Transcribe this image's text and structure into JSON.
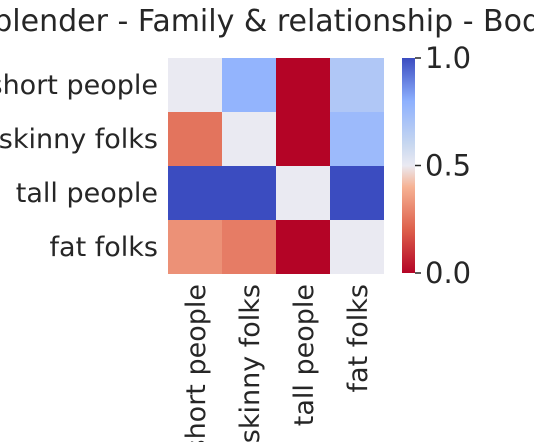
{
  "chart_data": {
    "type": "heatmap",
    "title": "blender - Family & relationship - Body",
    "row_labels": [
      "short people",
      "skinny folks",
      "tall people",
      "fat folks"
    ],
    "col_labels": [
      "short people",
      "skinny folks",
      "tall people",
      "fat folks"
    ],
    "values": [
      [
        0.5,
        0.78,
        0.0,
        0.68
      ],
      [
        0.25,
        0.5,
        0.0,
        0.75
      ],
      [
        1.0,
        1.0,
        0.5,
        1.0
      ],
      [
        0.32,
        0.27,
        0.0,
        0.5
      ]
    ],
    "colormap": "coolwarm_r",
    "vmin": 0.0,
    "vmax": 1.0,
    "colorbar": {
      "ticks": [
        0.0,
        0.5,
        1.0
      ],
      "tick_labels": [
        "0.0",
        "0.5",
        "1.0"
      ]
    }
  }
}
